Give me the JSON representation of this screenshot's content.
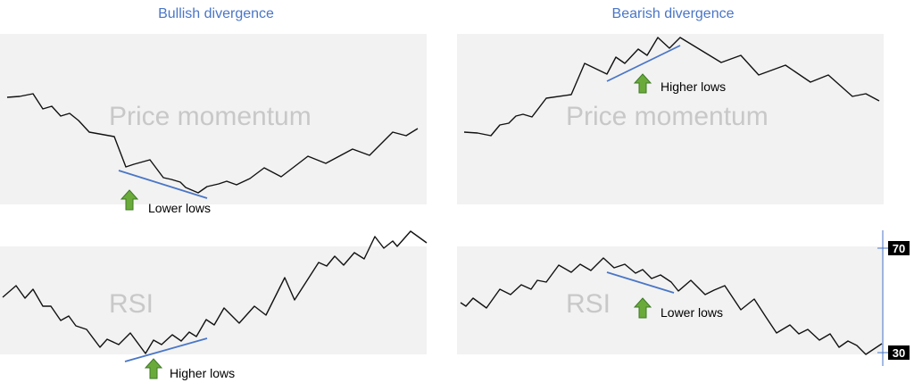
{
  "titles": {
    "left": "Bullish divergence",
    "right": "Bearish divergence"
  },
  "panels": {
    "tl": {
      "watermark": "Price momentum",
      "label": "Lower lows"
    },
    "tr": {
      "watermark": "Price momentum",
      "label": "Higher lows"
    },
    "bl": {
      "watermark": "RSI",
      "label": "Higher lows"
    },
    "br": {
      "watermark": "RSI",
      "label": "Lower lows"
    }
  },
  "scale": {
    "upper": "70",
    "lower": "30"
  },
  "colors": {
    "trend_line": "#4a76c6",
    "arrow": "#6aaa3a",
    "panel_bg": "#f2f2f2",
    "series": "#111111"
  },
  "icons": {
    "marker": "up-arrow-icon"
  }
}
